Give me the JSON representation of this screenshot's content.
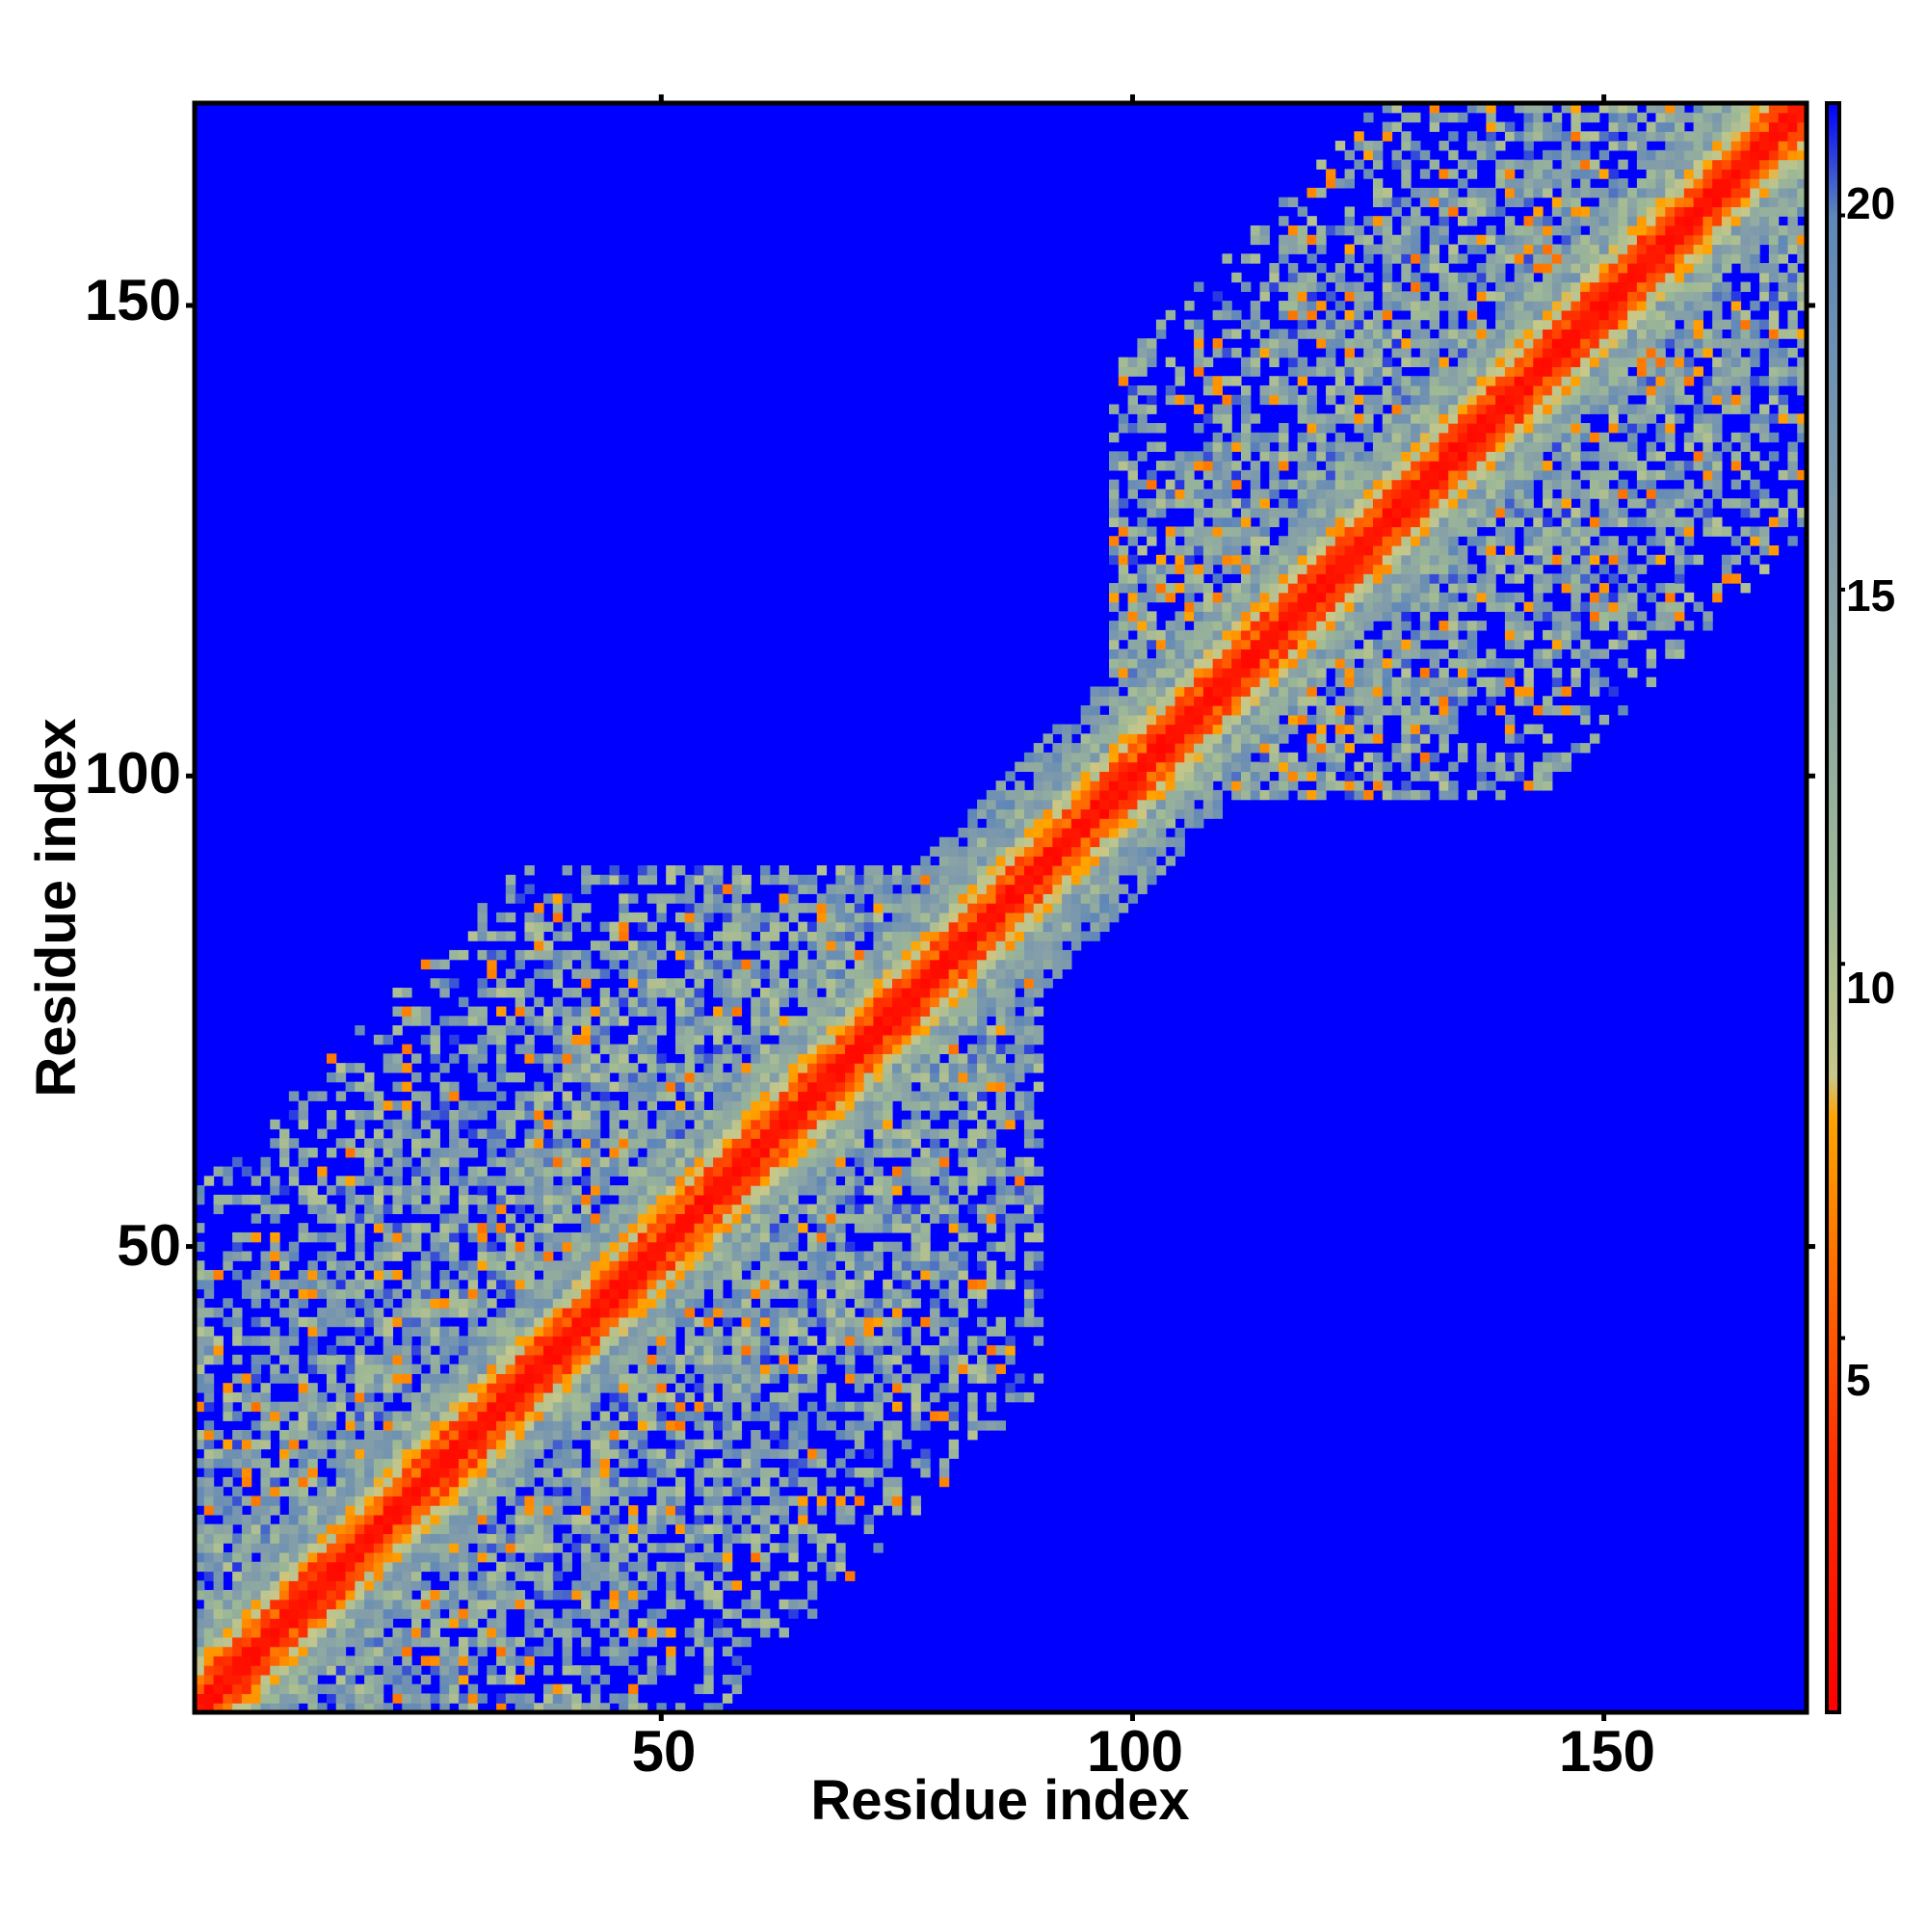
{
  "chart_data": {
    "type": "heatmap",
    "title": "",
    "xlabel": "Residue index",
    "ylabel": "Residue index",
    "n_residues": 171,
    "xlim": [
      1,
      171
    ],
    "ylim": [
      1,
      171
    ],
    "x_ticks": [
      50,
      100,
      150
    ],
    "y_ticks": [
      50,
      100,
      150
    ],
    "colorbar": {
      "range": [
        0,
        21.5
      ],
      "ticks": [
        5,
        10,
        15,
        20
      ],
      "stops": [
        {
          "value": 0,
          "color": "#ff0000"
        },
        {
          "value": 3.5,
          "color": "#ff3000"
        },
        {
          "value": 6,
          "color": "#ff7000"
        },
        {
          "value": 8,
          "color": "#ffa500"
        },
        {
          "value": 8.5,
          "color": "#c8c88a"
        },
        {
          "value": 11,
          "color": "#9cb896"
        },
        {
          "value": 15,
          "color": "#87a0a8"
        },
        {
          "value": 20,
          "color": "#5f87b8"
        },
        {
          "value": 21.5,
          "color": "#0000ff"
        }
      ]
    },
    "background_value": 21.5,
    "background_color": "#0000ff",
    "description_of_values": "Symmetric residue-residue distance map; near-zero along the diagonal, blue (>=21.5) where residues are far apart.",
    "domains": [
      {
        "start": 1,
        "end": 90
      },
      {
        "start": 98,
        "end": 171
      }
    ]
  },
  "labels": {
    "x_axis_title": "Residue index",
    "y_axis_title": "Residue index",
    "x_tick_labels": [
      "50",
      "100",
      "150"
    ],
    "y_tick_labels": [
      "50",
      "100",
      "150"
    ],
    "colorbar_tick_labels": [
      "5",
      "10",
      "15",
      "20"
    ]
  }
}
